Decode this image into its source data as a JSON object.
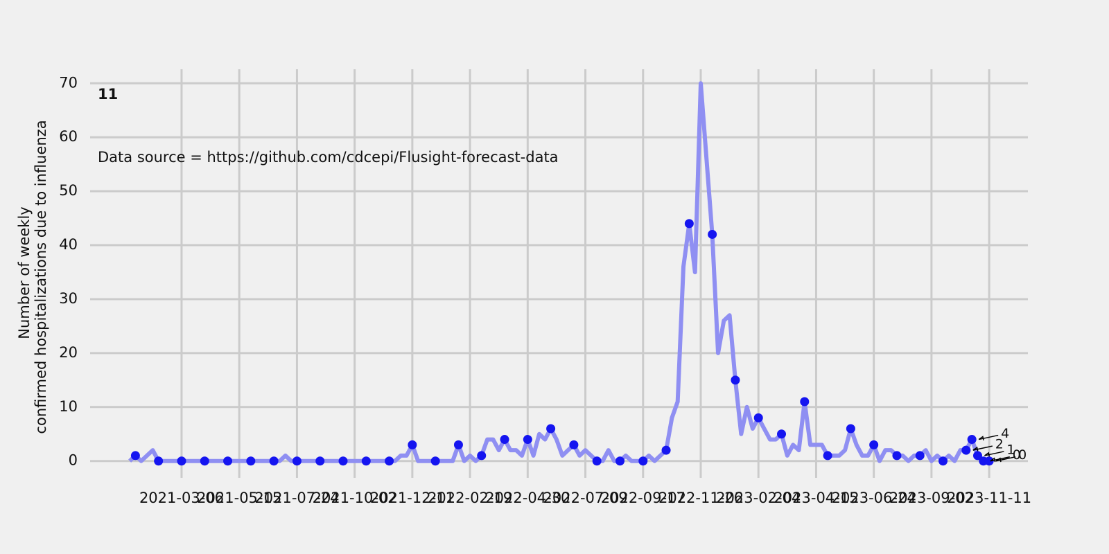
{
  "chart_data": {
    "type": "line",
    "label": "11",
    "annotation": "Data source = https://github.com/cdcepi/Flusight-forecast-data",
    "ylabel": [
      "Number of weekly",
      "confirmed hospitalizations due to influenza"
    ],
    "xlim": [
      "2020-11-15",
      "2023-12-28"
    ],
    "xticks": [
      "2021-03-06",
      "2021-05-15",
      "2021-07-24",
      "2021-10-02",
      "2021-12-11",
      "2022-02-19",
      "2022-04-30",
      "2022-07-09",
      "2022-09-17",
      "2022-11-26",
      "2023-02-04",
      "2023-04-15",
      "2023-06-24",
      "2023-09-02",
      "2023-11-11"
    ],
    "ylim": [
      -3.5,
      73.5
    ],
    "yticks": [
      0,
      10,
      20,
      30,
      40,
      50,
      60,
      70
    ],
    "grid": true,
    "series": [
      {
        "style": "line",
        "color": "#8f8ff2",
        "x": [
          "2021-01-02",
          "2021-01-09",
          "2021-01-16",
          "2021-01-23",
          "2021-01-30",
          "2021-02-06",
          "2021-02-13",
          "2021-02-20",
          "2021-02-27",
          "2021-03-06",
          "2021-03-13",
          "2021-03-20",
          "2021-03-27",
          "2021-04-03",
          "2021-04-10",
          "2021-04-17",
          "2021-04-24",
          "2021-05-01",
          "2021-05-08",
          "2021-05-15",
          "2021-05-22",
          "2021-05-29",
          "2021-06-05",
          "2021-06-12",
          "2021-06-19",
          "2021-06-26",
          "2021-07-03",
          "2021-07-10",
          "2021-07-17",
          "2021-07-24",
          "2021-07-31",
          "2021-08-07",
          "2021-08-14",
          "2021-08-21",
          "2021-08-28",
          "2021-09-04",
          "2021-09-11",
          "2021-09-18",
          "2021-09-25",
          "2021-10-02",
          "2021-10-09",
          "2021-10-16",
          "2021-10-23",
          "2021-10-30",
          "2021-11-06",
          "2021-11-13",
          "2021-11-20",
          "2021-11-27",
          "2021-12-04",
          "2021-12-11",
          "2021-12-18",
          "2021-12-25",
          "2022-01-01",
          "2022-01-08",
          "2022-01-15",
          "2022-01-22",
          "2022-01-29",
          "2022-02-05",
          "2022-02-12",
          "2022-02-19",
          "2022-02-26",
          "2022-03-05",
          "2022-03-12",
          "2022-03-19",
          "2022-03-26",
          "2022-04-02",
          "2022-04-09",
          "2022-04-16",
          "2022-04-23",
          "2022-04-30",
          "2022-05-07",
          "2022-05-14",
          "2022-05-21",
          "2022-05-28",
          "2022-06-04",
          "2022-06-11",
          "2022-06-18",
          "2022-06-25",
          "2022-07-02",
          "2022-07-09",
          "2022-07-16",
          "2022-07-23",
          "2022-07-30",
          "2022-08-06",
          "2022-08-13",
          "2022-08-20",
          "2022-08-27",
          "2022-09-03",
          "2022-09-10",
          "2022-09-17",
          "2022-09-24",
          "2022-10-01",
          "2022-10-08",
          "2022-10-15",
          "2022-10-22",
          "2022-10-29",
          "2022-11-05",
          "2022-11-12",
          "2022-11-19",
          "2022-11-26",
          "2022-12-03",
          "2022-12-10",
          "2022-12-17",
          "2022-12-24",
          "2022-12-31",
          "2023-01-07",
          "2023-01-14",
          "2023-01-21",
          "2023-01-28",
          "2023-02-04",
          "2023-02-11",
          "2023-02-18",
          "2023-02-25",
          "2023-03-04",
          "2023-03-11",
          "2023-03-18",
          "2023-03-25",
          "2023-04-01",
          "2023-04-08",
          "2023-04-15",
          "2023-04-22",
          "2023-04-29",
          "2023-05-06",
          "2023-05-13",
          "2023-05-20",
          "2023-05-27",
          "2023-06-03",
          "2023-06-10",
          "2023-06-17",
          "2023-06-24",
          "2023-07-01",
          "2023-07-08",
          "2023-07-15",
          "2023-07-22",
          "2023-07-29",
          "2023-08-05",
          "2023-08-12",
          "2023-08-19",
          "2023-08-26",
          "2023-09-02",
          "2023-09-09",
          "2023-09-16",
          "2023-09-23",
          "2023-09-30",
          "2023-10-07",
          "2023-10-14",
          "2023-10-21",
          "2023-10-28",
          "2023-11-04",
          "2023-11-11"
        ],
        "values": [
          0,
          1,
          0,
          1,
          2,
          0,
          0,
          0,
          0,
          0,
          0,
          0,
          0,
          0,
          0,
          0,
          0,
          0,
          0,
          0,
          0,
          0,
          0,
          0,
          0,
          0,
          0,
          1,
          0,
          0,
          0,
          0,
          0,
          0,
          0,
          0,
          0,
          0,
          0,
          0,
          0,
          0,
          0,
          0,
          0,
          0,
          0,
          1,
          1,
          3,
          0,
          0,
          0,
          0,
          0,
          0,
          0,
          3,
          0,
          1,
          0,
          1,
          4,
          4,
          2,
          4,
          2,
          2,
          1,
          4,
          1,
          5,
          4,
          6,
          4,
          1,
          2,
          3,
          1,
          2,
          1,
          0,
          0,
          2,
          0,
          0,
          1,
          0,
          0,
          0,
          1,
          0,
          1,
          2,
          8,
          11,
          36,
          44,
          35,
          70,
          56,
          42,
          20,
          26,
          27,
          15,
          5,
          10,
          6,
          8,
          6,
          4,
          4,
          5,
          1,
          3,
          2,
          11,
          3,
          3,
          3,
          1,
          1,
          1,
          2,
          6,
          3,
          1,
          1,
          3,
          0,
          2,
          2,
          1,
          1,
          0,
          1,
          1,
          2,
          0,
          1,
          0,
          1,
          0,
          2,
          2,
          4,
          1,
          0,
          0
        ]
      },
      {
        "style": "scatter",
        "color": "#1515f0",
        "x": [
          "2021-01-09",
          "2021-02-06",
          "2021-03-06",
          "2021-04-03",
          "2021-05-01",
          "2021-05-29",
          "2021-06-26",
          "2021-07-24",
          "2021-08-21",
          "2021-09-18",
          "2021-10-16",
          "2021-11-13",
          "2021-12-11",
          "2022-01-08",
          "2022-02-05",
          "2022-03-05",
          "2022-04-02",
          "2022-04-30",
          "2022-05-28",
          "2022-06-25",
          "2022-07-23",
          "2022-08-20",
          "2022-09-17",
          "2022-10-15",
          "2022-11-12",
          "2022-12-10",
          "2023-01-07",
          "2023-02-04",
          "2023-03-04",
          "2023-04-01",
          "2023-04-29",
          "2023-05-27",
          "2023-06-24",
          "2023-07-22",
          "2023-08-19",
          "2023-09-16",
          "2023-10-14",
          "2023-10-21",
          "2023-10-28",
          "2023-11-04",
          "2023-11-11"
        ],
        "values": [
          1,
          0,
          0,
          0,
          0,
          0,
          0,
          0,
          0,
          0,
          0,
          0,
          3,
          0,
          3,
          1,
          4,
          4,
          6,
          3,
          0,
          0,
          0,
          2,
          44,
          42,
          15,
          8,
          5,
          11,
          1,
          6,
          3,
          1,
          1,
          0,
          2,
          4,
          1,
          0,
          0
        ]
      }
    ],
    "annotations": [
      {
        "text": "4",
        "x": "2023-10-21",
        "y": 4
      },
      {
        "text": "2",
        "x": "2023-10-14",
        "y": 2
      },
      {
        "text": "1",
        "x": "2023-10-28",
        "y": 1
      },
      {
        "text": "0",
        "x": "2023-11-04",
        "y": 0
      },
      {
        "text": "0",
        "x": "2023-11-11",
        "y": 0
      }
    ]
  }
}
